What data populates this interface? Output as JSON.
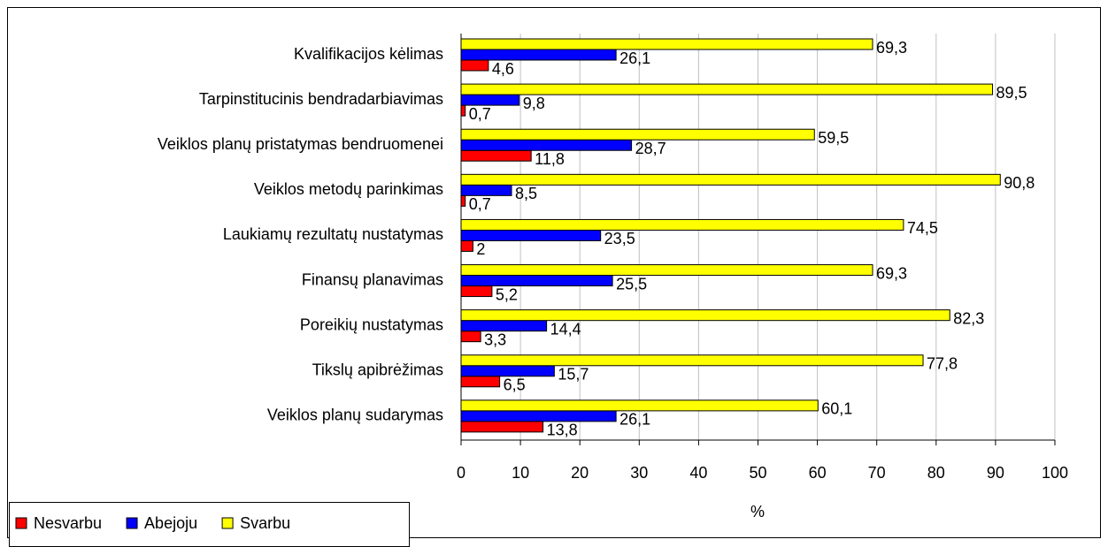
{
  "chart_data": {
    "type": "barh",
    "categories": [
      "Kvalifikacijos kėlimas",
      "Tarpinstitucinis bendradarbiavimas",
      "Veiklos planų pristatymas bendruomenei",
      "Veiklos metodų parinkimas",
      "Laukiamų rezultatų nustatymas",
      "Finansų planavimas",
      "Poreikių nustatymas",
      "Tikslų apibrėžimas",
      "Veiklos planų sudarymas"
    ],
    "series": [
      {
        "name": "Nesvarbu",
        "color": "#ff0000",
        "values": [
          4.6,
          0.7,
          11.8,
          0.7,
          2,
          5.2,
          3.3,
          6.5,
          13.8
        ],
        "value_labels": [
          "4,6",
          "0,7",
          "11,8",
          "0,7",
          "2",
          "5,2",
          "3,3",
          "6,5",
          "13,8"
        ]
      },
      {
        "name": "Abejoju",
        "color": "#0000ff",
        "values": [
          26.1,
          9.8,
          28.7,
          8.5,
          23.5,
          25.5,
          14.4,
          15.7,
          26.1
        ],
        "value_labels": [
          "26,1",
          "9,8",
          "28,7",
          "8,5",
          "23,5",
          "25,5",
          "14,4",
          "15,7",
          "26,1"
        ]
      },
      {
        "name": "Svarbu",
        "color": "#ffff00",
        "values": [
          69.3,
          89.5,
          59.5,
          90.8,
          74.5,
          69.3,
          82.3,
          77.8,
          60.1
        ],
        "value_labels": [
          "69,3",
          "89,5",
          "59,5",
          "90,8",
          "74,5",
          "69,3",
          "82,3",
          "77,8",
          "60,1"
        ]
      }
    ],
    "xlabel": "%",
    "xlim": [
      0,
      100
    ],
    "xticks": [
      0,
      10,
      20,
      30,
      40,
      50,
      60,
      70,
      80,
      90,
      100
    ],
    "grid": true,
    "legend": "bottom-left"
  }
}
